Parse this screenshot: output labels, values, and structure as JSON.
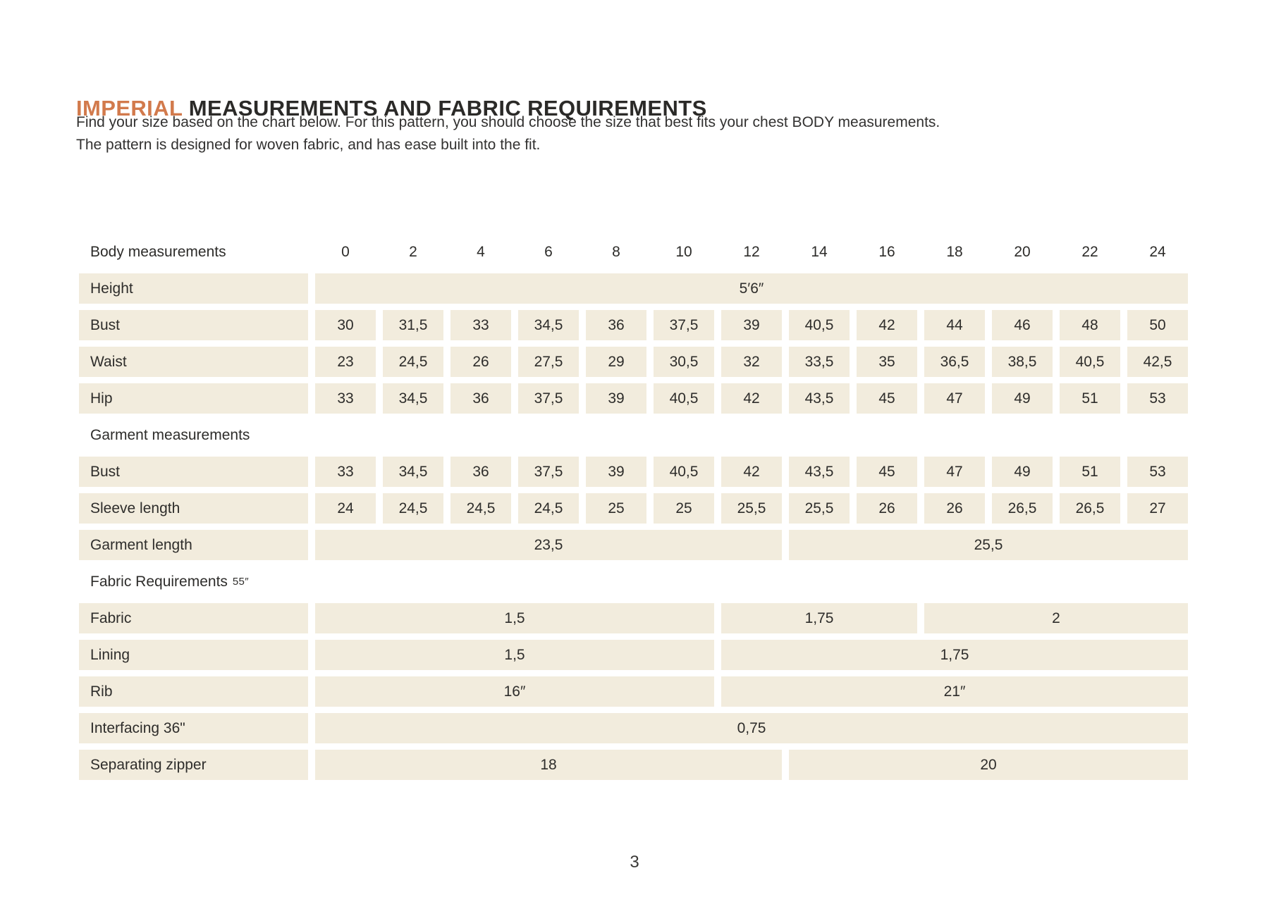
{
  "colors": {
    "accent": "#d27a4c",
    "cell_bg": "#f2ecdd",
    "text": "#2d2c2a"
  },
  "page": {
    "title_highlight": "IMPERIAL",
    "title_rest": " MEASUREMENTS AND FABRIC REQUIREMENTS",
    "intro_line1": "Find your size based on the chart below. For this pattern, you should choose the size that best fits your chest BODY measurements.",
    "intro_line2": "The pattern is designed for woven fabric, and has ease built into the fit.",
    "page_number": "3"
  },
  "table": {
    "header_label": "Body measurements",
    "sizes": [
      "0",
      "2",
      "4",
      "6",
      "8",
      "10",
      "12",
      "14",
      "16",
      "18",
      "20",
      "22",
      "24"
    ],
    "rows": [
      {
        "type": "cells",
        "label": "Height",
        "spans": [
          {
            "span": 13,
            "value": "5′6″"
          }
        ]
      },
      {
        "type": "cells",
        "label": "Bust",
        "values": [
          "30",
          "31,5",
          "33",
          "34,5",
          "36",
          "37,5",
          "39",
          "40,5",
          "42",
          "44",
          "46",
          "48",
          "50"
        ]
      },
      {
        "type": "cells",
        "label": "Waist",
        "values": [
          "23",
          "24,5",
          "26",
          "27,5",
          "29",
          "30,5",
          "32",
          "33,5",
          "35",
          "36,5",
          "38,5",
          "40,5",
          "42,5"
        ]
      },
      {
        "type": "cells",
        "label": "Hip",
        "values": [
          "33",
          "34,5",
          "36",
          "37,5",
          "39",
          "40,5",
          "42",
          "43,5",
          "45",
          "47",
          "49",
          "51",
          "53"
        ]
      },
      {
        "type": "section",
        "label": "Garment measurements"
      },
      {
        "type": "cells",
        "label": "Bust",
        "values": [
          "33",
          "34,5",
          "36",
          "37,5",
          "39",
          "40,5",
          "42",
          "43,5",
          "45",
          "47",
          "49",
          "51",
          "53"
        ]
      },
      {
        "type": "cells",
        "label": "Sleeve length",
        "values": [
          "24",
          "24,5",
          "24,5",
          "24,5",
          "25",
          "25",
          "25,5",
          "25,5",
          "26",
          "26",
          "26,5",
          "26,5",
          "27"
        ]
      },
      {
        "type": "cells",
        "label": "Garment length",
        "spans": [
          {
            "span": 7,
            "value": "23,5"
          },
          {
            "span": 6,
            "value": "25,5"
          }
        ]
      },
      {
        "type": "section",
        "label": "Fabric Requirements",
        "suffix": "55″"
      },
      {
        "type": "cells",
        "label": "Fabric",
        "spans": [
          {
            "span": 6,
            "value": "1,5"
          },
          {
            "span": 3,
            "value": "1,75"
          },
          {
            "span": 4,
            "value": "2"
          }
        ]
      },
      {
        "type": "cells",
        "label": "Lining",
        "spans": [
          {
            "span": 6,
            "value": "1,5"
          },
          {
            "span": 7,
            "value": "1,75"
          }
        ]
      },
      {
        "type": "cells",
        "label": "Rib",
        "spans": [
          {
            "span": 6,
            "value": "16″"
          },
          {
            "span": 7,
            "value": "21″"
          }
        ]
      },
      {
        "type": "cells",
        "label": "Interfacing 36\"",
        "spans": [
          {
            "span": 13,
            "value": "0,75"
          }
        ]
      },
      {
        "type": "cells",
        "label": "Separating zipper",
        "spans": [
          {
            "span": 7,
            "value": "18"
          },
          {
            "span": 6,
            "value": "20"
          }
        ]
      }
    ]
  }
}
